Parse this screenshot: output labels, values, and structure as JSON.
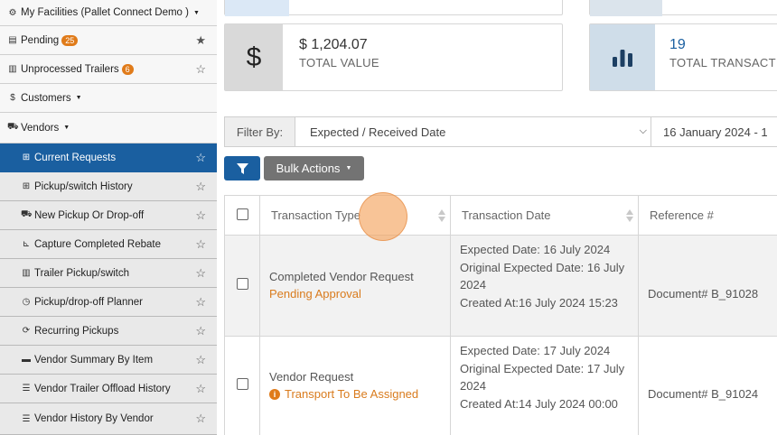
{
  "sidebar": {
    "facilities": "My Facilities (Pallet Connect Demo )",
    "pending": {
      "label": "Pending",
      "badge": "25"
    },
    "unprocessed": {
      "label": "Unprocessed Trailers",
      "badge": "6"
    },
    "customers": "Customers",
    "vendors": "Vendors",
    "vendor_items": [
      {
        "label": "Current Requests",
        "icon": "table-icon"
      },
      {
        "label": "Pickup/switch History",
        "icon": "table-icon"
      },
      {
        "label": "New Pickup Or Drop-off",
        "icon": "truck-icon"
      },
      {
        "label": "Capture Completed Rebate",
        "icon": "dolly-icon"
      },
      {
        "label": "Trailer Pickup/switch",
        "icon": "trailer-icon"
      },
      {
        "label": "Pickup/drop-off Planner",
        "icon": "clock-icon"
      },
      {
        "label": "Recurring Pickups",
        "icon": "refresh-icon"
      },
      {
        "label": "Vendor Summary By Item",
        "icon": "pallet-icon"
      },
      {
        "label": "Vendor Trailer Offload History",
        "icon": "list-icon"
      },
      {
        "label": "Vendor History By Vendor",
        "icon": "list-icon"
      }
    ]
  },
  "stats": {
    "total_value": {
      "number": "$ 1,204.07",
      "label": "TOTAL VALUE"
    },
    "total_transactions": {
      "number": "19",
      "label": "TOTAL TRANSACTI"
    }
  },
  "filter": {
    "label": "Filter By:",
    "selected": "Expected / Received Date",
    "date_range": "16 January 2024 - 1"
  },
  "buttons": {
    "bulk_actions": "Bulk Actions"
  },
  "table": {
    "headers": [
      "Transaction Type",
      "Transaction Date",
      "Reference #"
    ],
    "rows": [
      {
        "type": "Completed Vendor Request",
        "status": "Pending Approval",
        "dates": [
          "Expected Date: 16 July 2024",
          "Original Expected Date: 16 July 2024",
          "Created At:16 July 2024 15:23"
        ],
        "ref": "Document# B_91028"
      },
      {
        "type": "Vendor Request",
        "status": "Transport To Be Assigned",
        "dates": [
          "Expected Date: 17 July 2024",
          "Original Expected Date: 17 July 2024",
          "Created At:14 July 2024 00:00"
        ],
        "ref": "Document# B_91024"
      }
    ]
  },
  "colors": {
    "accent": "#1a5fa0",
    "badge": "#e07b1a",
    "status": "#d97b1d"
  }
}
